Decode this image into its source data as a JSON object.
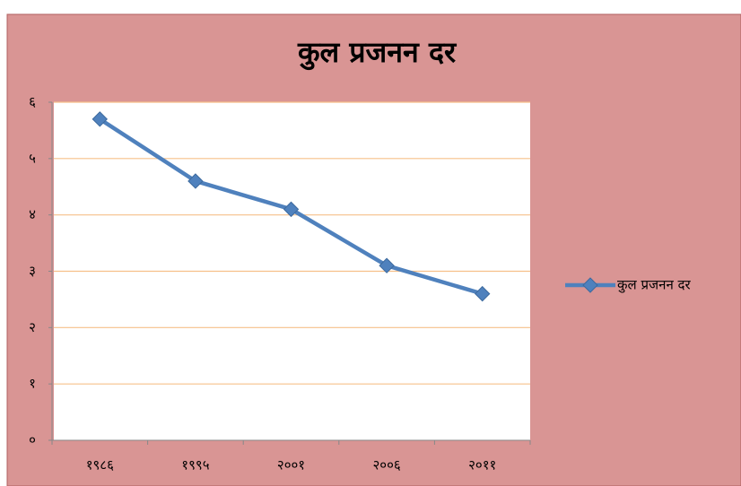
{
  "chart_data": {
    "type": "line",
    "title": "कुल प्रजनन दर",
    "categories": [
      "१९८६",
      "१९९५",
      "२००१",
      "२००६",
      "२०११"
    ],
    "series": [
      {
        "name": "कुल प्रजनन दर",
        "color": "#4f81bd",
        "values": [
          5.7,
          4.6,
          4.1,
          3.1,
          2.6
        ]
      }
    ],
    "ylim": [
      0,
      6
    ],
    "yticks": [
      {
        "value": 0,
        "label": "०"
      },
      {
        "value": 1,
        "label": "१"
      },
      {
        "value": 2,
        "label": "२"
      },
      {
        "value": 3,
        "label": "३"
      },
      {
        "value": 4,
        "label": "४"
      },
      {
        "value": 5,
        "label": "५"
      },
      {
        "value": 6,
        "label": "६"
      }
    ],
    "grid": true,
    "legend": "right"
  }
}
